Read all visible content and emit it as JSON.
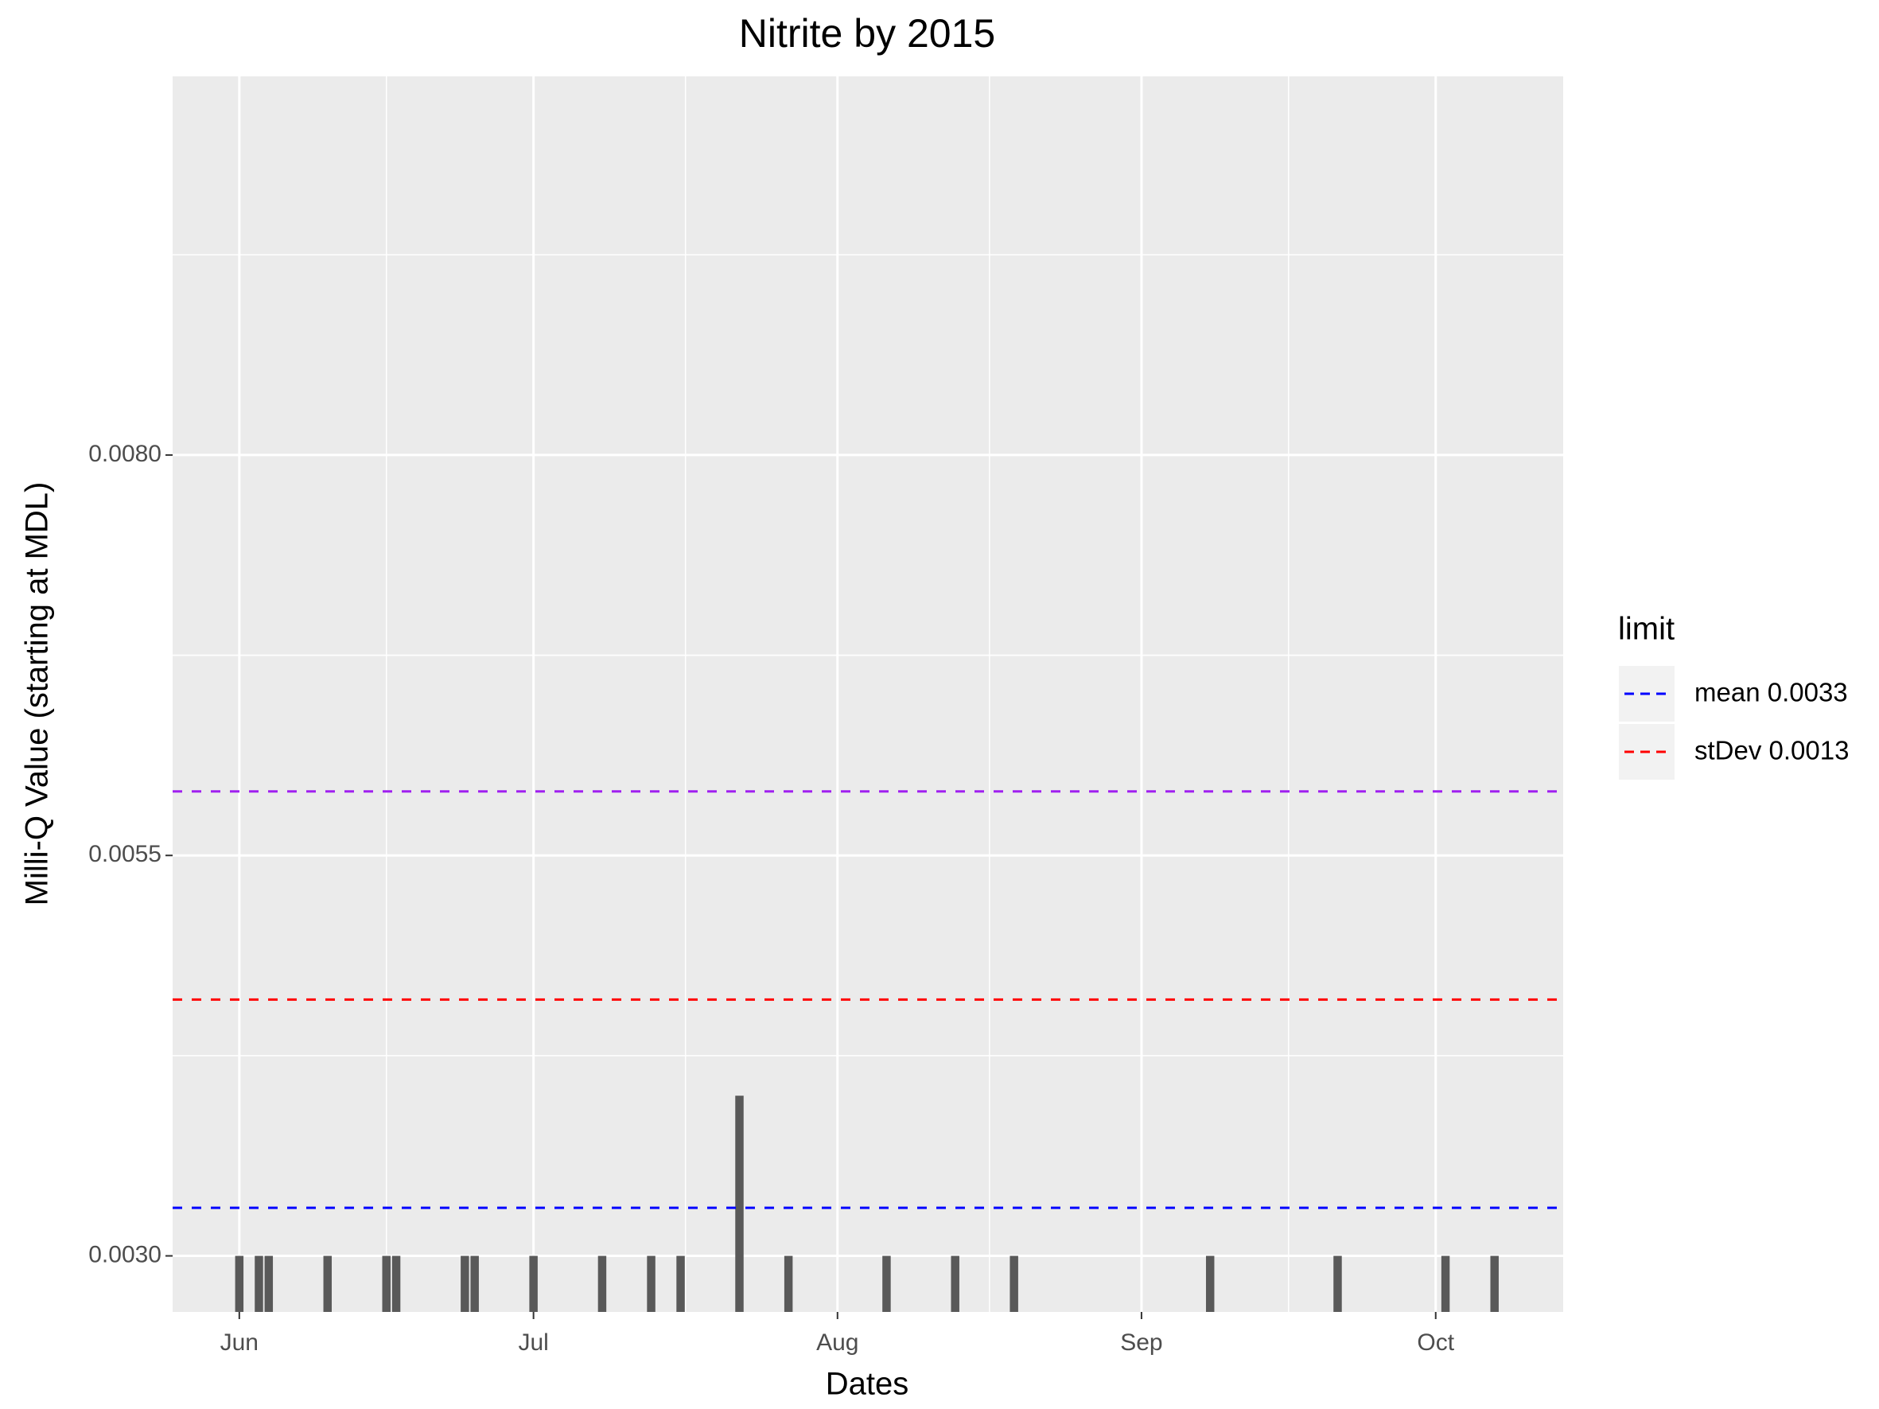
{
  "chart_data": {
    "type": "bar",
    "title": "Nitrite by 2015",
    "x_label": "Dates",
    "y_label": "Milli-Q Value (starting at MDL)",
    "x": [
      0,
      2,
      3,
      9,
      15,
      16,
      23,
      24,
      30,
      37,
      42,
      45,
      51,
      56,
      66,
      73,
      79,
      99,
      112,
      123,
      128
    ],
    "values": [
      0.003,
      0.003,
      0.003,
      0.003,
      0.003,
      0.003,
      0.003,
      0.003,
      0.003,
      0.003,
      0.003,
      0.003,
      0.004,
      0.003,
      0.003,
      0.003,
      0.003,
      0.003,
      0.003,
      0.003,
      0.003
    ],
    "color": "#595959",
    "xlim": [
      -6.8,
      135
    ],
    "xticks": [
      {
        "value": 0,
        "label": "Jun"
      },
      {
        "value": 30,
        "label": "Jul"
      },
      {
        "value": 61,
        "label": "Aug"
      },
      {
        "value": 92,
        "label": "Sep"
      },
      {
        "value": 122,
        "label": "Oct"
      }
    ],
    "ylim": [
      0.00265,
      0.010364
    ],
    "yticks": [
      {
        "value": 0.003,
        "label": "0.0030"
      },
      {
        "value": 0.0055,
        "label": "0.0055"
      },
      {
        "value": 0.008,
        "label": "0.0080"
      }
    ],
    "grid": true,
    "legend_title": "limit",
    "legend_position": "right",
    "hlines": [
      {
        "name": "mean 0.0033",
        "value": 0.0033,
        "color": "#0000ff"
      },
      {
        "name": "stDev 0.0013",
        "value": 0.0046,
        "color": "#ff0000"
      },
      {
        "value": 0.0059,
        "color": "#a020f0"
      }
    ]
  }
}
